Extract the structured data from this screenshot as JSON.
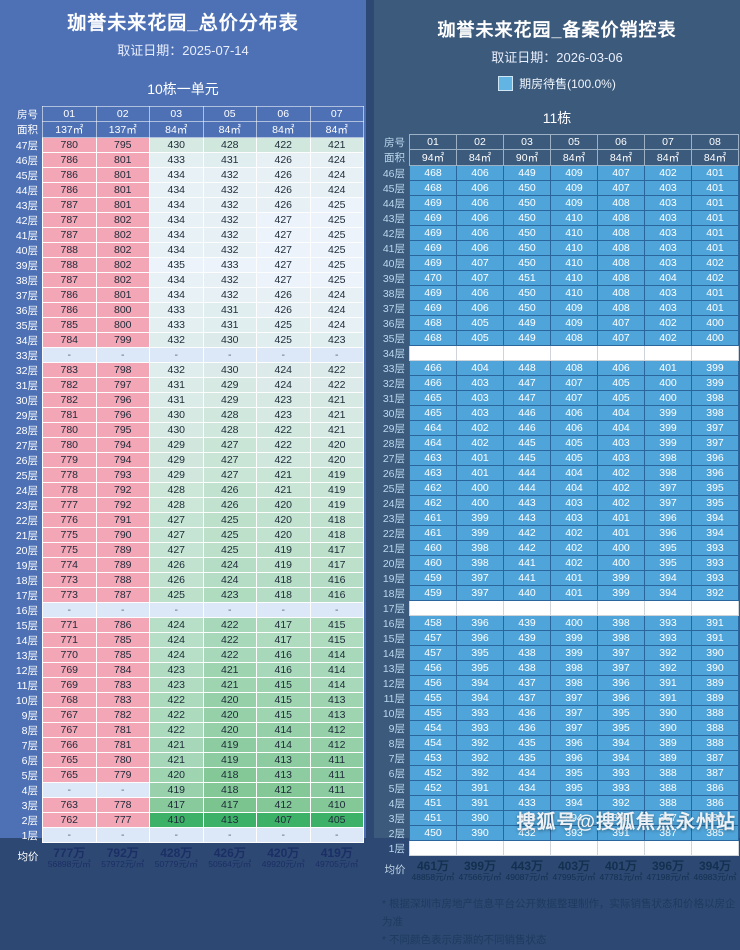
{
  "colors": {
    "left_bg": "#4e71b6",
    "right_bg": "#3c5a7c",
    "divider": "#2d4872",
    "pink_cell": "#f3a6b6",
    "dash_bg": "#dce8f8",
    "blue_cell": "#4fa5da",
    "legend_fill": "#62b4e3",
    "scale_stops": [
      [
        0,
        "#3eb168"
      ],
      [
        0.2,
        "#7bc48f"
      ],
      [
        0.45,
        "#a8d8ba"
      ],
      [
        0.7,
        "#c9e5d5"
      ],
      [
        0.85,
        "#dcebe9"
      ],
      [
        1,
        "#ecf3fa"
      ]
    ],
    "left_avg_text": "#1b2f66",
    "right_avg_text": "#14304f",
    "footnote_text": "#1d3a5e",
    "watermark_text": "#eef2f6"
  },
  "left_panel": {
    "title": "珈誉未来花园_总价分布表",
    "date_label": "取证日期：2025-07-14",
    "building_label": "10栋一单元",
    "row_header_top": "房号",
    "row_header_bottom": "面积",
    "avg_label": "均价",
    "columns": [
      "01",
      "02",
      "03",
      "05",
      "06",
      "07"
    ],
    "areas": [
      "137㎡",
      "137㎡",
      "84㎡",
      "84㎡",
      "84㎡",
      "84㎡"
    ],
    "col_types": [
      "pink",
      "pink",
      "scale",
      "scale",
      "scale",
      "scale"
    ],
    "floors": [
      "47层",
      "46层",
      "45层",
      "44层",
      "43层",
      "42层",
      "41层",
      "40层",
      "39层",
      "38层",
      "37层",
      "36层",
      "35层",
      "34层",
      "33层",
      "32层",
      "31层",
      "30层",
      "29层",
      "28层",
      "27层",
      "26层",
      "25层",
      "24层",
      "23层",
      "22层",
      "21层",
      "20层",
      "19层",
      "18层",
      "17层",
      "16层",
      "15层",
      "14层",
      "13层",
      "12层",
      "11层",
      "10层",
      "9层",
      "8层",
      "7层",
      "6层",
      "5层",
      "4层",
      "3层",
      "2层",
      "1层"
    ],
    "rows": [
      [
        780,
        795,
        430,
        428,
        422,
        421
      ],
      [
        786,
        801,
        433,
        431,
        426,
        424
      ],
      [
        786,
        801,
        434,
        432,
        426,
        424
      ],
      [
        786,
        801,
        434,
        432,
        426,
        424
      ],
      [
        787,
        801,
        434,
        432,
        426,
        425
      ],
      [
        787,
        802,
        434,
        432,
        427,
        425
      ],
      [
        787,
        802,
        434,
        432,
        427,
        425
      ],
      [
        788,
        802,
        434,
        432,
        427,
        425
      ],
      [
        788,
        802,
        435,
        433,
        427,
        425
      ],
      [
        787,
        802,
        434,
        432,
        427,
        425
      ],
      [
        786,
        801,
        434,
        432,
        426,
        424
      ],
      [
        786,
        800,
        433,
        431,
        426,
        424
      ],
      [
        785,
        800,
        433,
        431,
        425,
        424
      ],
      [
        784,
        799,
        432,
        430,
        425,
        423
      ],
      [
        "-",
        "-",
        "-",
        "-",
        "-",
        "-"
      ],
      [
        783,
        798,
        432,
        430,
        424,
        422
      ],
      [
        782,
        797,
        431,
        429,
        424,
        422
      ],
      [
        782,
        796,
        431,
        429,
        423,
        421
      ],
      [
        781,
        796,
        430,
        428,
        423,
        421
      ],
      [
        780,
        795,
        430,
        428,
        422,
        421
      ],
      [
        780,
        794,
        429,
        427,
        422,
        420
      ],
      [
        779,
        794,
        429,
        427,
        422,
        420
      ],
      [
        778,
        793,
        429,
        427,
        421,
        419
      ],
      [
        778,
        792,
        428,
        426,
        421,
        419
      ],
      [
        777,
        792,
        428,
        426,
        420,
        419
      ],
      [
        776,
        791,
        427,
        425,
        420,
        418
      ],
      [
        775,
        790,
        427,
        425,
        420,
        418
      ],
      [
        775,
        789,
        427,
        425,
        419,
        417
      ],
      [
        774,
        789,
        426,
        424,
        419,
        417
      ],
      [
        773,
        788,
        426,
        424,
        418,
        416
      ],
      [
        773,
        787,
        425,
        423,
        418,
        416
      ],
      [
        "-",
        "-",
        "-",
        "-",
        "-",
        "-"
      ],
      [
        771,
        786,
        424,
        422,
        417,
        415
      ],
      [
        771,
        785,
        424,
        422,
        417,
        415
      ],
      [
        770,
        785,
        424,
        422,
        416,
        414
      ],
      [
        769,
        784,
        423,
        421,
        416,
        414
      ],
      [
        769,
        783,
        423,
        421,
        415,
        414
      ],
      [
        768,
        783,
        422,
        420,
        415,
        413
      ],
      [
        767,
        782,
        422,
        420,
        415,
        413
      ],
      [
        767,
        781,
        422,
        420,
        414,
        412
      ],
      [
        766,
        781,
        421,
        419,
        414,
        412
      ],
      [
        765,
        780,
        421,
        419,
        413,
        411
      ],
      [
        765,
        779,
        420,
        418,
        413,
        411
      ],
      [
        "-",
        "-",
        419,
        418,
        412,
        411
      ],
      [
        763,
        778,
        417,
        417,
        412,
        410
      ],
      [
        762,
        777,
        410,
        413,
        407,
        405
      ],
      [
        "-",
        "-",
        "-",
        "-",
        "-",
        "-"
      ]
    ],
    "avg": [
      [
        "777万",
        "56898元/㎡"
      ],
      [
        "792万",
        "57972元/㎡"
      ],
      [
        "428万",
        "50779元/㎡"
      ],
      [
        "426万",
        "50564元/㎡"
      ],
      [
        "420万",
        "49920元/㎡"
      ],
      [
        "419万",
        "49705元/㎡"
      ]
    ]
  },
  "right_panel": {
    "title": "珈誉未来花园_备案价销控表",
    "date_label": "取证日期：2026-03-06",
    "legend_label": "期房待售(100.0%)",
    "building_label": "11栋",
    "row_header_top": "房号",
    "row_header_bottom": "面积",
    "avg_label": "均价",
    "columns": [
      "01",
      "02",
      "03",
      "05",
      "06",
      "07",
      "08"
    ],
    "areas": [
      "94㎡",
      "84㎡",
      "90㎡",
      "84㎡",
      "84㎡",
      "84㎡",
      "84㎡"
    ],
    "col_types": [
      "blue",
      "blue",
      "blue",
      "blue",
      "blue",
      "blue",
      "blue"
    ],
    "floors": [
      "46层",
      "45层",
      "44层",
      "43层",
      "42层",
      "41层",
      "40层",
      "39层",
      "38层",
      "37层",
      "36层",
      "35层",
      "34层",
      "33层",
      "32层",
      "31层",
      "30层",
      "29层",
      "28层",
      "27层",
      "26层",
      "25层",
      "24层",
      "23层",
      "22层",
      "21层",
      "20层",
      "19层",
      "18层",
      "17层",
      "16层",
      "15层",
      "14层",
      "13层",
      "12层",
      "11层",
      "10层",
      "9层",
      "8层",
      "7层",
      "6层",
      "5层",
      "4层",
      "3层",
      "2层",
      "1层"
    ],
    "rows": [
      [
        468,
        406,
        449,
        409,
        407,
        402,
        401
      ],
      [
        468,
        406,
        450,
        409,
        407,
        403,
        401
      ],
      [
        469,
        406,
        450,
        409,
        408,
        403,
        401
      ],
      [
        469,
        406,
        450,
        410,
        408,
        403,
        401
      ],
      [
        469,
        406,
        450,
        410,
        408,
        403,
        401
      ],
      [
        469,
        406,
        450,
        410,
        408,
        403,
        401
      ],
      [
        469,
        407,
        450,
        410,
        408,
        403,
        402
      ],
      [
        470,
        407,
        451,
        410,
        408,
        404,
        402
      ],
      [
        469,
        406,
        450,
        410,
        408,
        403,
        401
      ],
      [
        469,
        406,
        450,
        409,
        408,
        403,
        401
      ],
      [
        468,
        405,
        449,
        409,
        407,
        402,
        400
      ],
      [
        468,
        405,
        449,
        408,
        407,
        402,
        400
      ],
      null,
      [
        466,
        404,
        448,
        408,
        406,
        401,
        399
      ],
      [
        466,
        403,
        447,
        407,
        405,
        400,
        399
      ],
      [
        465,
        403,
        447,
        407,
        405,
        400,
        398
      ],
      [
        465,
        403,
        446,
        406,
        404,
        399,
        398
      ],
      [
        464,
        402,
        446,
        406,
        404,
        399,
        397
      ],
      [
        464,
        402,
        445,
        405,
        403,
        399,
        397
      ],
      [
        463,
        401,
        445,
        405,
        403,
        398,
        396
      ],
      [
        463,
        401,
        444,
        404,
        402,
        398,
        396
      ],
      [
        462,
        400,
        444,
        404,
        402,
        397,
        395
      ],
      [
        462,
        400,
        443,
        403,
        402,
        397,
        395
      ],
      [
        461,
        399,
        443,
        403,
        401,
        396,
        394
      ],
      [
        461,
        399,
        442,
        402,
        401,
        396,
        394
      ],
      [
        460,
        398,
        442,
        402,
        400,
        395,
        393
      ],
      [
        460,
        398,
        441,
        402,
        400,
        395,
        393
      ],
      [
        459,
        397,
        441,
        401,
        399,
        394,
        393
      ],
      [
        459,
        397,
        440,
        401,
        399,
        394,
        392
      ],
      null,
      [
        458,
        396,
        439,
        400,
        398,
        393,
        391
      ],
      [
        457,
        396,
        439,
        399,
        398,
        393,
        391
      ],
      [
        457,
        395,
        438,
        399,
        397,
        392,
        390
      ],
      [
        456,
        395,
        438,
        398,
        397,
        392,
        390
      ],
      [
        456,
        394,
        437,
        398,
        396,
        391,
        389
      ],
      [
        455,
        394,
        437,
        397,
        396,
        391,
        389
      ],
      [
        455,
        393,
        436,
        397,
        395,
        390,
        388
      ],
      [
        454,
        393,
        436,
        397,
        395,
        390,
        388
      ],
      [
        454,
        392,
        435,
        396,
        394,
        389,
        388
      ],
      [
        453,
        392,
        435,
        396,
        394,
        389,
        387
      ],
      [
        452,
        392,
        434,
        395,
        393,
        388,
        387
      ],
      [
        452,
        391,
        434,
        395,
        393,
        388,
        386
      ],
      [
        451,
        391,
        433,
        394,
        392,
        388,
        386
      ],
      [
        451,
        390,
        433,
        394,
        392,
        387,
        385
      ],
      [
        450,
        390,
        432,
        393,
        391,
        387,
        385
      ],
      null
    ],
    "avg": [
      [
        "461万",
        "48858元/㎡"
      ],
      [
        "399万",
        "47566元/㎡"
      ],
      [
        "443万",
        "49087元/㎡"
      ],
      [
        "403万",
        "47995元/㎡"
      ],
      [
        "401万",
        "47781元/㎡"
      ],
      [
        "396万",
        "47198元/㎡"
      ],
      [
        "394万",
        "46983元/㎡"
      ]
    ],
    "footnotes": [
      "* 根据深圳市房地产信息平台公开数据整理制作，实际销售状态和价格以房企为准",
      "* 不同颜色表示房源的不同销售状态"
    ],
    "watermark": "搜狐号@搜狐焦点永州站"
  }
}
